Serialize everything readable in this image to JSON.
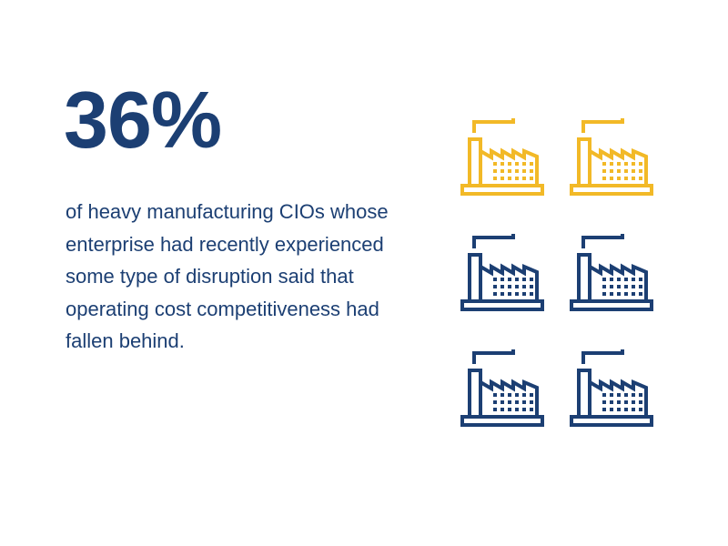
{
  "headline": {
    "value": "36%",
    "description": "of heavy manufacturing CIOs whose enterprise had recently experienced some type of disruption said that operating cost competitiveness had fallen behind."
  },
  "colors": {
    "primary": "#1c3f73",
    "highlight": "#f2b927",
    "background": "#ffffff"
  },
  "icons": {
    "name": "factory-icon",
    "total": 6,
    "highlighted": 2
  }
}
